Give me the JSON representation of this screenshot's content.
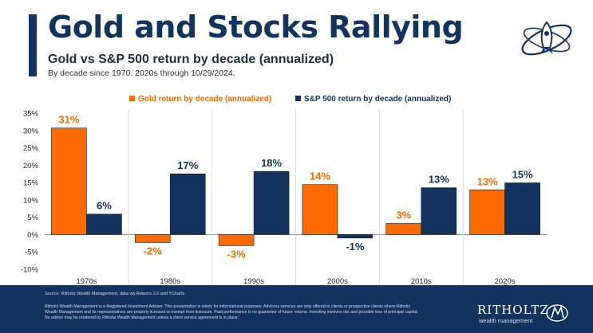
{
  "header": {
    "title": "Gold and Stocks Rallying",
    "subtitle": "Gold vs S&P 500 return by decade (annualized)",
    "note": "By decade since 1970. 2020s through 10/29/2024."
  },
  "colors": {
    "gold": "#ff6a00",
    "sp500": "#11335e",
    "brand_navy": "#11335e"
  },
  "chart_data": {
    "type": "bar",
    "categories": [
      "1970s",
      "1980s",
      "1990s",
      "2000s",
      "2010s",
      "2020s"
    ],
    "series": [
      {
        "name": "Gold return by decade (annualized)",
        "values": [
          31,
          -2,
          -3,
          14,
          3,
          13
        ],
        "labels": [
          "31%",
          "-2%",
          "-3%",
          "14%",
          "3%",
          "13%"
        ],
        "bar_values": [
          30.7,
          -2.3,
          -3.2,
          14.4,
          3.2,
          12.9
        ]
      },
      {
        "name": "S&P 500 return by decade (annualized)",
        "values": [
          6,
          17,
          18,
          -1,
          13,
          15
        ],
        "labels": [
          "6%",
          "17%",
          "18%",
          "-1%",
          "13%",
          "15%"
        ],
        "bar_values": [
          5.9,
          17.5,
          18.2,
          -1.0,
          13.5,
          14.9
        ]
      }
    ],
    "yticks": [
      "35%",
      "30%",
      "25%",
      "20%",
      "15%",
      "10%",
      "5%",
      "0%",
      "-5%",
      "-10%"
    ],
    "ytick_values": [
      35,
      30,
      25,
      20,
      15,
      10,
      5,
      0,
      -5,
      -10
    ],
    "ylim": [
      -10,
      35
    ],
    "legend_position": "top",
    "grid": false
  },
  "footer": {
    "source": "Source: Ritholtz Wealth Management, data via Returns 2.0 and YCharts",
    "disclaimer": "Ritholtz Wealth Management is a Registered Investment Adviser. This presentation is solely for informational purposes. Advisory services are only offered to clients or prospective clients where Ritholtz Wealth Management and its representatives are properly licensed or exempt from licensure. Past performance is no guarantee of future returns. Investing involves risk and possible loss of principal capital. No advice may be rendered by Ritholtz Wealth Management unless a client service agreement is in place.",
    "brand_name": "RITHOLTZ",
    "brand_sub": "wealth management"
  },
  "icons": {
    "top_logo": "rocket-orbit-logo",
    "brand_mark": "rwm-monogram-icon"
  }
}
